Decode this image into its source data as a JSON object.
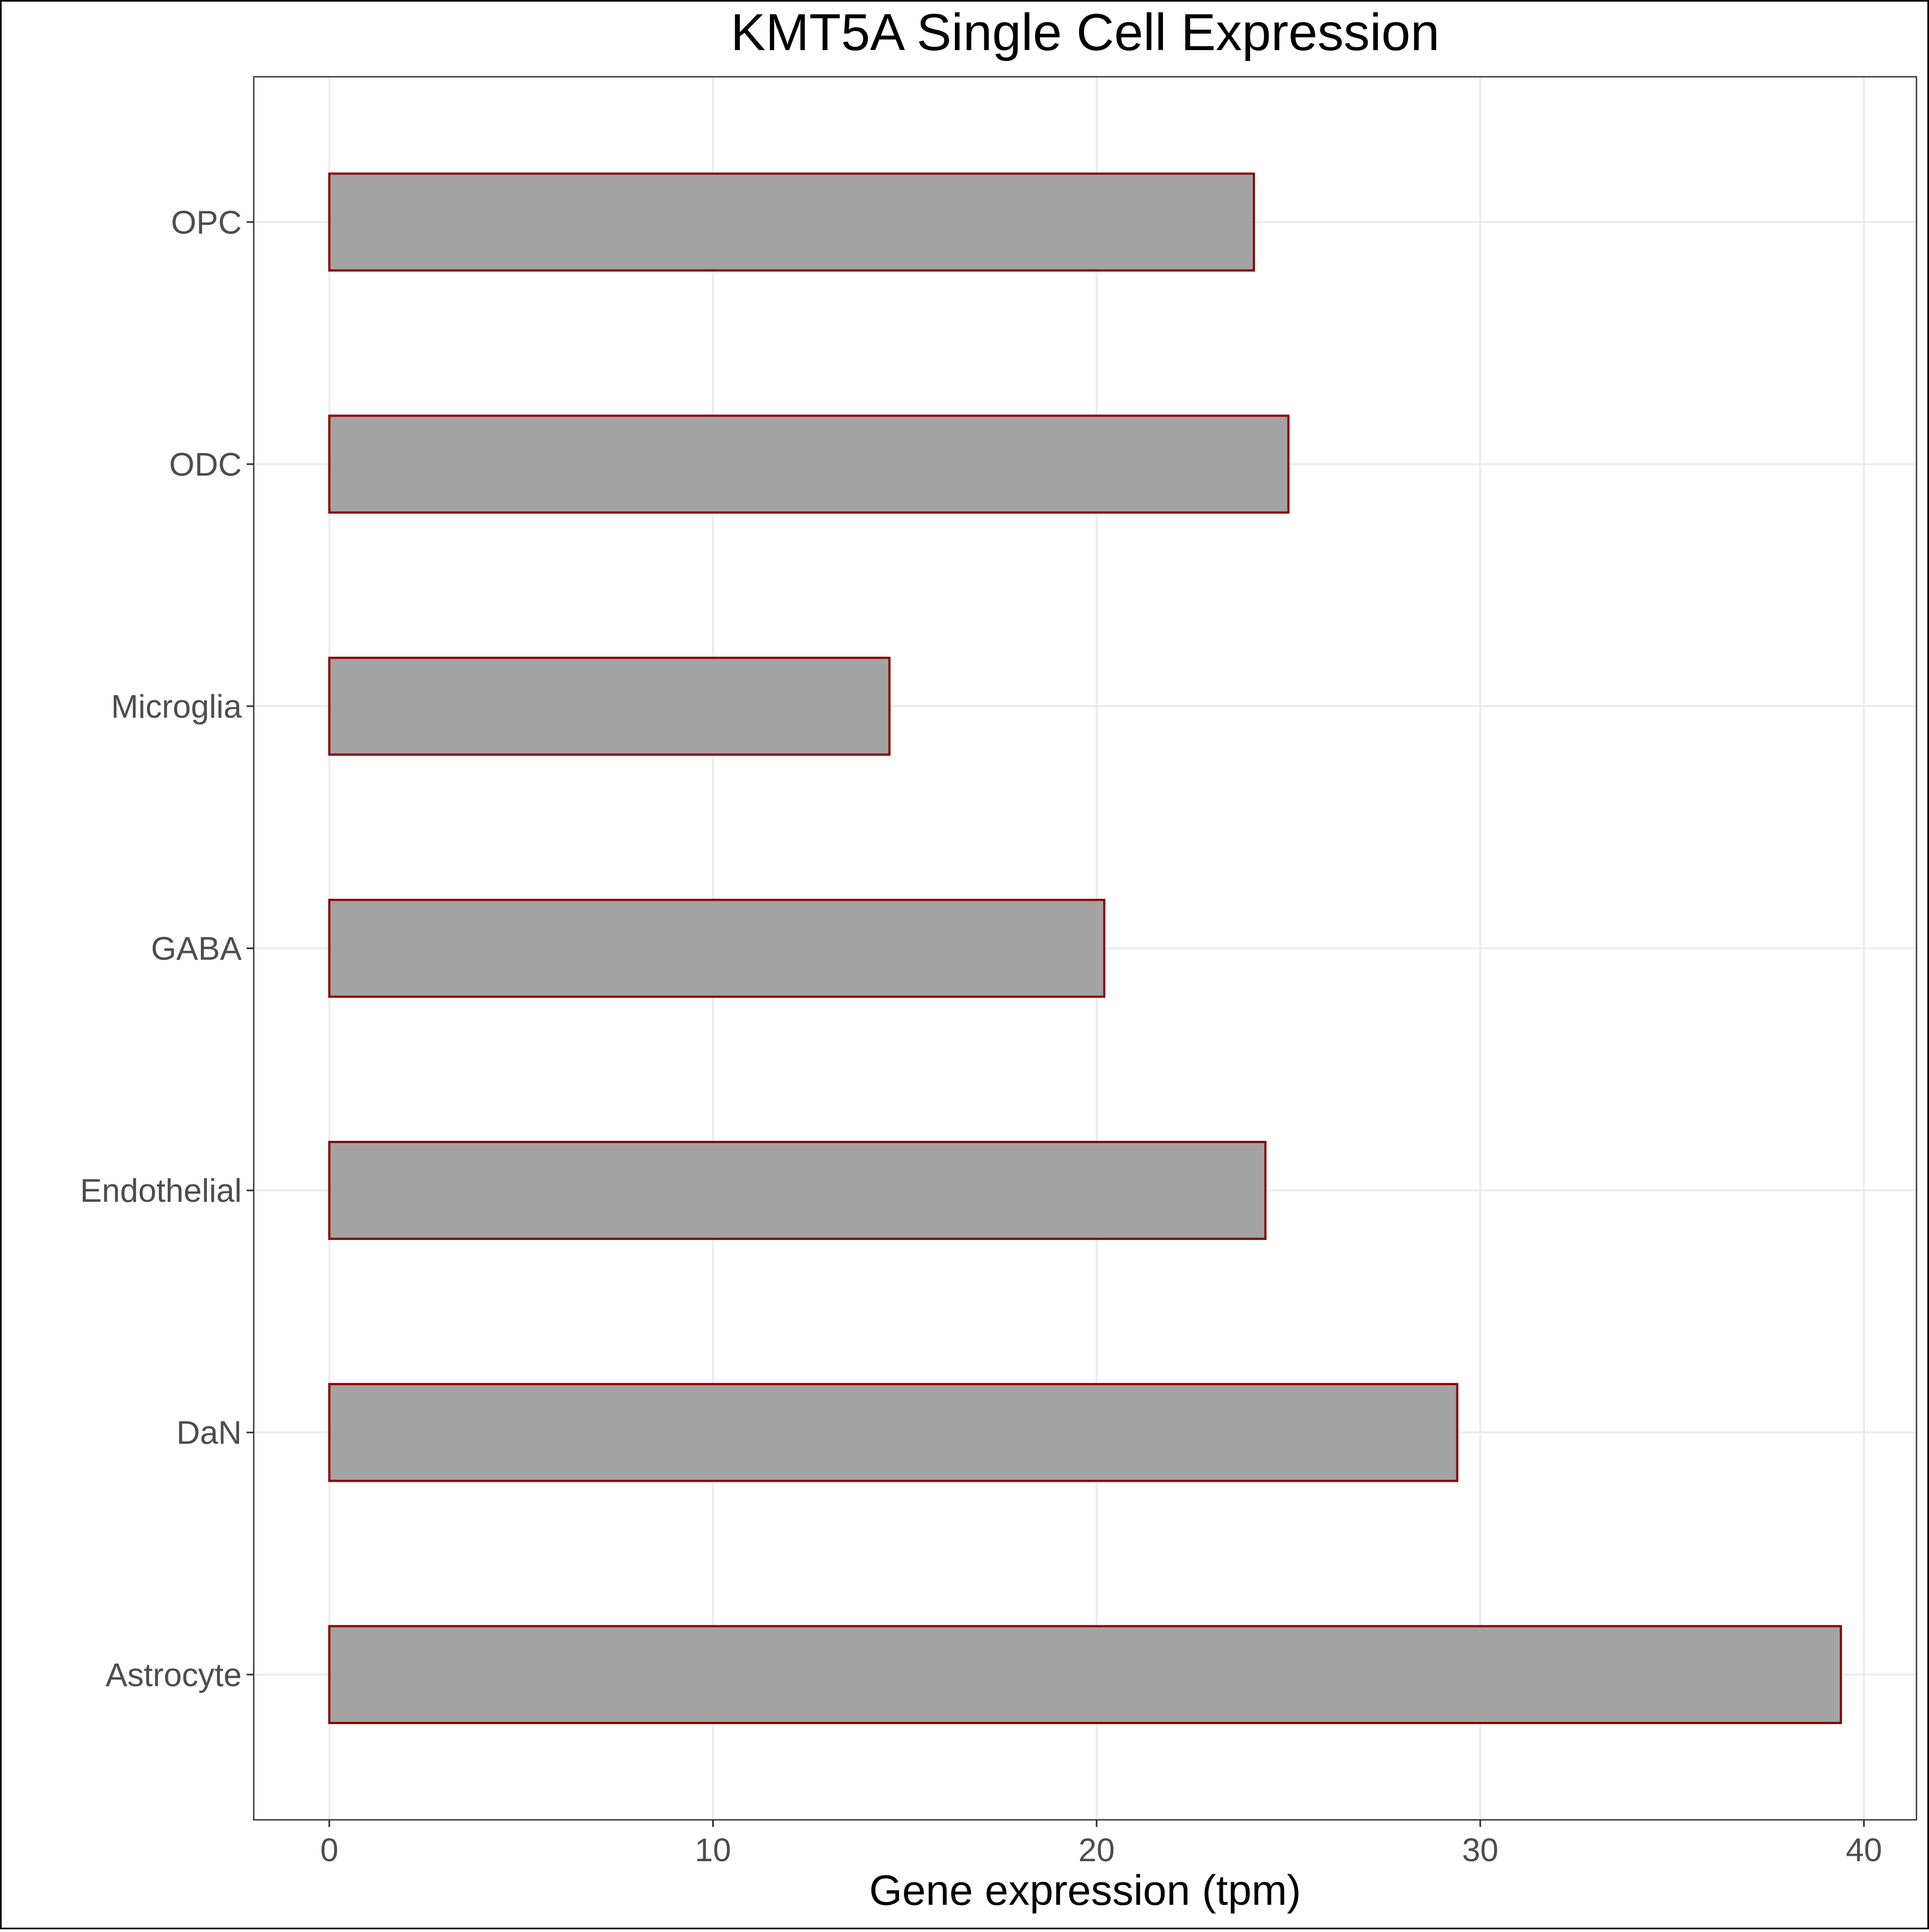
{
  "chart_data": {
    "type": "bar",
    "orientation": "horizontal",
    "title": "KMT5A Single Cell Expression",
    "xlabel": "Gene expression (tpm)",
    "ylabel": "",
    "categories": [
      "Astrocyte",
      "DaN",
      "Endothelial",
      "GABA",
      "Microglia",
      "ODC",
      "OPC"
    ],
    "values": [
      39.4,
      29.4,
      24.4,
      20.2,
      14.6,
      25.0,
      24.1
    ],
    "xlim": [
      -1.97,
      41.37
    ],
    "xticks": [
      0,
      10,
      20,
      30,
      40
    ],
    "grid": true,
    "legend": "none",
    "colors": {
      "bar_fill": "#a3a3a3",
      "bar_stroke": "#8b0000",
      "grid": "#ebebeb",
      "panel_border": "#333333",
      "outer_border": "#000000"
    }
  }
}
